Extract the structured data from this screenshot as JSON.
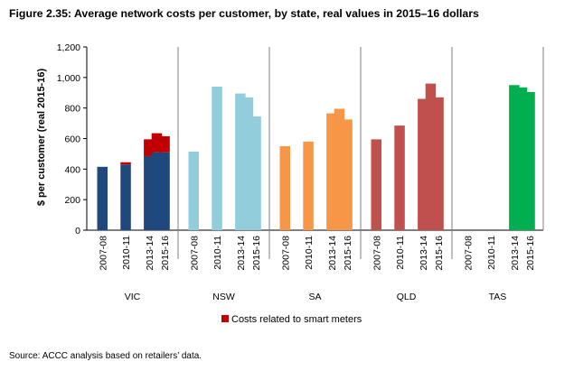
{
  "figure": {
    "title": "Figure 2.35: Average network costs per customer, by state, real values in 2015–16 dollars",
    "source": "Source: ACCC analysis based on retailers’ data."
  },
  "chart_data": {
    "type": "bar",
    "stacked": true,
    "ylabel": "$ per customer (real 2015-16)",
    "ylim": [
      0,
      1200
    ],
    "yticks": [
      0,
      200,
      400,
      600,
      800,
      1000,
      1200
    ],
    "ytick_labels": [
      "0",
      "200",
      "400",
      "600",
      "800",
      "1,000",
      "1,200"
    ],
    "grid": false,
    "legend_position": "bottom-center",
    "years": [
      "2007-08",
      "2008-09",
      "2009-10",
      "2010-11",
      "2011-12",
      "2012-13",
      "2013-14",
      "2014-15",
      "2015-16"
    ],
    "year_labels": [
      "2007-08",
      "2010-11",
      "2013-14",
      "2015-16"
    ],
    "groups": [
      {
        "name": "VIC",
        "color": "#1f497d",
        "values": [
          415,
          null,
          null,
          430,
          null,
          null,
          485,
          510,
          510
        ],
        "smart_meter": [
          0,
          null,
          null,
          15,
          null,
          null,
          110,
          125,
          105
        ]
      },
      {
        "name": "NSW",
        "color": "#92cddc",
        "values": [
          515,
          null,
          null,
          940,
          null,
          null,
          895,
          870,
          745
        ],
        "smart_meter": [
          0,
          null,
          null,
          0,
          null,
          null,
          0,
          0,
          0
        ]
      },
      {
        "name": "SA",
        "color": "#f79646",
        "values": [
          550,
          null,
          null,
          580,
          null,
          null,
          765,
          795,
          725
        ],
        "smart_meter": [
          0,
          null,
          null,
          0,
          null,
          null,
          0,
          0,
          0
        ]
      },
      {
        "name": "QLD",
        "color": "#c0504d",
        "values": [
          595,
          null,
          null,
          685,
          null,
          null,
          860,
          960,
          870
        ],
        "smart_meter": [
          0,
          null,
          null,
          0,
          null,
          null,
          0,
          0,
          0
        ]
      },
      {
        "name": "TAS",
        "color": "#00b050",
        "values": [
          null,
          null,
          null,
          null,
          null,
          null,
          950,
          935,
          905
        ],
        "smart_meter": [
          null,
          null,
          null,
          null,
          null,
          null,
          0,
          0,
          0
        ]
      }
    ],
    "stack_series": {
      "name": "Costs related to smart meters",
      "color": "#c00000"
    }
  }
}
